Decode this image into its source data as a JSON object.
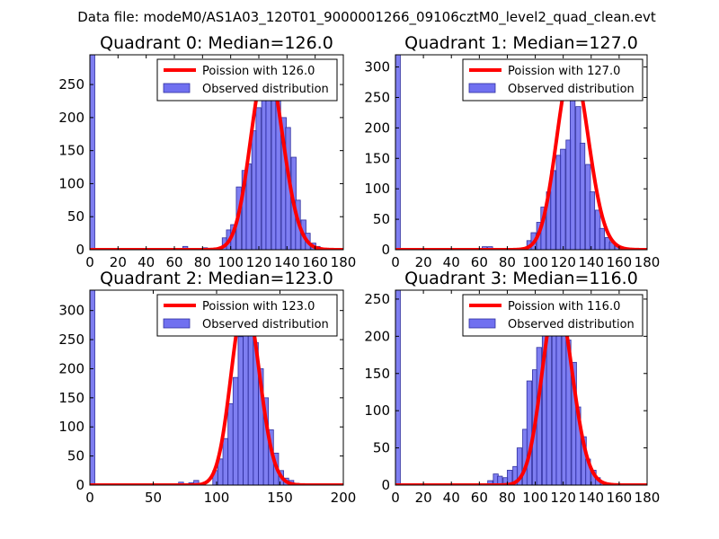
{
  "figure": {
    "suptitle": "Data file: modeM0/AS1A03_120T01_9000001266_09106cztM0_level2_quad_clean.evt",
    "bar_color": "#7070f0",
    "bar_edge_color": "#3030a0",
    "fit_color": "#ff0000"
  },
  "chart_data": [
    {
      "type": "bar",
      "title": "Quadrant 0: Median=126.0",
      "xlim": [
        0,
        180
      ],
      "ylim": [
        0,
        295
      ],
      "xticks": [
        0,
        20,
        40,
        60,
        80,
        100,
        120,
        140,
        160,
        180
      ],
      "yticks": [
        0,
        50,
        100,
        150,
        200,
        250
      ],
      "bin_width": 3.5,
      "bins": [
        [
          0,
          295
        ],
        [
          66,
          5
        ],
        [
          80,
          3
        ],
        [
          94,
          18
        ],
        [
          97,
          30
        ],
        [
          100,
          38
        ],
        [
          104,
          95
        ],
        [
          108,
          120
        ],
        [
          111,
          130
        ],
        [
          115,
          180
        ],
        [
          118,
          215
        ],
        [
          122,
          235
        ],
        [
          125,
          270
        ],
        [
          129,
          258
        ],
        [
          132,
          230
        ],
        [
          136,
          200
        ],
        [
          139,
          185
        ],
        [
          143,
          140
        ],
        [
          146,
          75
        ],
        [
          150,
          45
        ],
        [
          153,
          25
        ],
        [
          157,
          10
        ],
        [
          160,
          5
        ]
      ],
      "fit": {
        "label": "Poission with 126.0",
        "mean": 126.0,
        "peak": 283
      },
      "legend": [
        "Poission with 126.0",
        "Observed distribution"
      ]
    },
    {
      "type": "bar",
      "title": "Quadrant 1: Median=127.0",
      "xlim": [
        0,
        180
      ],
      "ylim": [
        0,
        320
      ],
      "xticks": [
        0,
        20,
        40,
        60,
        80,
        100,
        120,
        140,
        160,
        180
      ],
      "yticks": [
        0,
        50,
        100,
        150,
        200,
        250,
        300
      ],
      "bin_width": 3.5,
      "bins": [
        [
          0,
          320
        ],
        [
          62,
          5
        ],
        [
          66,
          5
        ],
        [
          94,
          15
        ],
        [
          97,
          28
        ],
        [
          101,
          45
        ],
        [
          104,
          70
        ],
        [
          108,
          95
        ],
        [
          111,
          130
        ],
        [
          115,
          155
        ],
        [
          118,
          165
        ],
        [
          122,
          180
        ],
        [
          125,
          255
        ],
        [
          129,
          235
        ],
        [
          132,
          175
        ],
        [
          136,
          140
        ],
        [
          139,
          95
        ],
        [
          143,
          65
        ],
        [
          146,
          35
        ],
        [
          150,
          20
        ],
        [
          153,
          12
        ],
        [
          157,
          6
        ],
        [
          160,
          3
        ]
      ],
      "fit": {
        "label": "Poission with 127.0",
        "mean": 127.0,
        "peak": 303
      },
      "legend": [
        "Poission with 127.0",
        "Observed distribution"
      ]
    },
    {
      "type": "bar",
      "title": "Quadrant 2: Median=123.0",
      "xlim": [
        0,
        200
      ],
      "ylim": [
        0,
        335
      ],
      "xticks": [
        0,
        50,
        100,
        150,
        200
      ],
      "yticks": [
        0,
        50,
        100,
        150,
        200,
        250,
        300
      ],
      "bin_width": 3.9,
      "bins": [
        [
          0,
          335
        ],
        [
          70,
          5
        ],
        [
          78,
          4
        ],
        [
          82,
          8
        ],
        [
          97,
          25
        ],
        [
          101,
          45
        ],
        [
          105,
          80
        ],
        [
          109,
          140
        ],
        [
          113,
          185
        ],
        [
          117,
          255
        ],
        [
          121,
          265
        ],
        [
          125,
          310
        ],
        [
          129,
          245
        ],
        [
          133,
          200
        ],
        [
          137,
          150
        ],
        [
          141,
          95
        ],
        [
          145,
          55
        ],
        [
          149,
          25
        ],
        [
          153,
          12
        ],
        [
          157,
          8
        ],
        [
          161,
          3
        ]
      ],
      "fit": {
        "label": "Poission with 123.0",
        "mean": 123.0,
        "peak": 318
      },
      "legend": [
        "Poission with 123.0",
        "Observed distribution"
      ]
    },
    {
      "type": "bar",
      "title": "Quadrant 3: Median=116.0",
      "xlim": [
        0,
        180
      ],
      "ylim": [
        0,
        262
      ],
      "xticks": [
        0,
        20,
        40,
        60,
        80,
        100,
        120,
        140,
        160,
        180
      ],
      "yticks": [
        0,
        50,
        100,
        150,
        200,
        250
      ],
      "bin_width": 3.5,
      "bins": [
        [
          0,
          262
        ],
        [
          66,
          6
        ],
        [
          70,
          15
        ],
        [
          73,
          12
        ],
        [
          77,
          10
        ],
        [
          80,
          20
        ],
        [
          84,
          25
        ],
        [
          87,
          50
        ],
        [
          91,
          75
        ],
        [
          94,
          140
        ],
        [
          98,
          155
        ],
        [
          101,
          185
        ],
        [
          105,
          210
        ],
        [
          108,
          235
        ],
        [
          112,
          245
        ],
        [
          115,
          225
        ],
        [
          119,
          215
        ],
        [
          122,
          195
        ],
        [
          126,
          165
        ],
        [
          129,
          105
        ],
        [
          133,
          65
        ],
        [
          136,
          35
        ],
        [
          140,
          20
        ],
        [
          143,
          10
        ],
        [
          147,
          3
        ]
      ],
      "fit": {
        "label": "Poission with 116.0",
        "mean": 116.0,
        "peak": 250
      },
      "legend": [
        "Poission with 116.0",
        "Observed distribution"
      ]
    }
  ]
}
